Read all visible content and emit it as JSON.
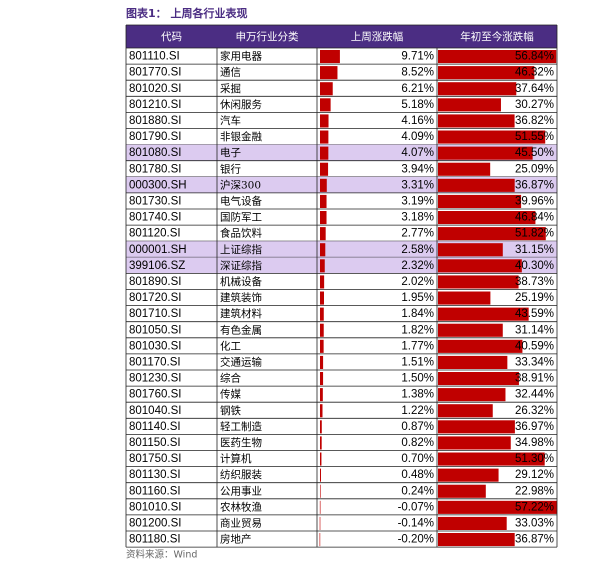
{
  "title": "图表1： 上周各行业表现",
  "source": "资料来源：Wind",
  "table": {
    "header": [
      "代码",
      "申万行业分类",
      "上周涨跌幅",
      "年初至今涨跌幅"
    ],
    "rows": [
      {
        "code": "801110.SI",
        "name": "家用电器",
        "week": {
          "value": 9.71,
          "label": "9.71%"
        },
        "ytd": {
          "value": 56.84,
          "label": "56.84%"
        }
      },
      {
        "code": "801770.SI",
        "name": "通信",
        "week": {
          "value": 8.52,
          "label": "8.52%"
        },
        "ytd": {
          "value": 46.32,
          "label": "46.32%"
        }
      },
      {
        "code": "801020.SI",
        "name": "采掘",
        "week": {
          "value": 6.21,
          "label": "6.21%"
        },
        "ytd": {
          "value": 37.64,
          "label": "37.64%"
        }
      },
      {
        "code": "801210.SI",
        "name": "休闲服务",
        "week": {
          "value": 5.18,
          "label": "5.18%"
        },
        "ytd": {
          "value": 30.27,
          "label": "30.27%"
        }
      },
      {
        "code": "801880.SI",
        "name": "汽车",
        "week": {
          "value": 4.16,
          "label": "4.16%"
        },
        "ytd": {
          "value": 36.82,
          "label": "36.82%"
        }
      },
      {
        "code": "801790.SI",
        "name": "非银金融",
        "week": {
          "value": 4.09,
          "label": "4.09%"
        },
        "ytd": {
          "value": 51.55,
          "label": "51.55%"
        }
      },
      {
        "code": "801080.SI",
        "name": "电子",
        "week": {
          "value": 4.07,
          "label": "4.07%"
        },
        "ytd": {
          "value": 45.5,
          "label": "45.50%"
        },
        "highlight": true
      },
      {
        "code": "801780.SI",
        "name": "银行",
        "week": {
          "value": 3.94,
          "label": "3.94%"
        },
        "ytd": {
          "value": 25.09,
          "label": "25.09%"
        }
      },
      {
        "code": "000300.SH",
        "name": "沪深300",
        "week": {
          "value": 3.31,
          "label": "3.31%"
        },
        "ytd": {
          "value": 36.87,
          "label": "36.87%"
        },
        "highlight": true
      },
      {
        "code": "801730.SI",
        "name": "电气设备",
        "week": {
          "value": 3.19,
          "label": "3.19%"
        },
        "ytd": {
          "value": 39.96,
          "label": "39.96%"
        }
      },
      {
        "code": "801740.SI",
        "name": "国防军工",
        "week": {
          "value": 3.18,
          "label": "3.18%"
        },
        "ytd": {
          "value": 46.84,
          "label": "46.84%"
        }
      },
      {
        "code": "801120.SI",
        "name": "食品饮料",
        "week": {
          "value": 2.77,
          "label": "2.77%"
        },
        "ytd": {
          "value": 51.82,
          "label": "51.82%"
        }
      },
      {
        "code": "000001.SH",
        "name": "上证综指",
        "week": {
          "value": 2.58,
          "label": "2.58%"
        },
        "ytd": {
          "value": 31.15,
          "label": "31.15%"
        },
        "highlight": true
      },
      {
        "code": "399106.SZ",
        "name": "深证综指",
        "week": {
          "value": 2.32,
          "label": "2.32%"
        },
        "ytd": {
          "value": 40.3,
          "label": "40.30%"
        },
        "highlight": true
      },
      {
        "code": "801890.SI",
        "name": "机械设备",
        "week": {
          "value": 2.02,
          "label": "2.02%"
        },
        "ytd": {
          "value": 38.73,
          "label": "38.73%"
        }
      },
      {
        "code": "801720.SI",
        "name": "建筑装饰",
        "week": {
          "value": 1.95,
          "label": "1.95%"
        },
        "ytd": {
          "value": 25.19,
          "label": "25.19%"
        }
      },
      {
        "code": "801710.SI",
        "name": "建筑材料",
        "week": {
          "value": 1.84,
          "label": "1.84%"
        },
        "ytd": {
          "value": 43.59,
          "label": "43.59%"
        }
      },
      {
        "code": "801050.SI",
        "name": "有色金属",
        "week": {
          "value": 1.82,
          "label": "1.82%"
        },
        "ytd": {
          "value": 31.14,
          "label": "31.14%"
        }
      },
      {
        "code": "801030.SI",
        "name": "化工",
        "week": {
          "value": 1.77,
          "label": "1.77%"
        },
        "ytd": {
          "value": 40.59,
          "label": "40.59%"
        }
      },
      {
        "code": "801170.SI",
        "name": "交通运输",
        "week": {
          "value": 1.51,
          "label": "1.51%"
        },
        "ytd": {
          "value": 33.34,
          "label": "33.34%"
        }
      },
      {
        "code": "801230.SI",
        "name": "综合",
        "week": {
          "value": 1.5,
          "label": "1.50%"
        },
        "ytd": {
          "value": 38.91,
          "label": "38.91%"
        }
      },
      {
        "code": "801760.SI",
        "name": "传媒",
        "week": {
          "value": 1.38,
          "label": "1.38%"
        },
        "ytd": {
          "value": 32.44,
          "label": "32.44%"
        }
      },
      {
        "code": "801040.SI",
        "name": "钢铁",
        "week": {
          "value": 1.22,
          "label": "1.22%"
        },
        "ytd": {
          "value": 26.32,
          "label": "26.32%"
        }
      },
      {
        "code": "801140.SI",
        "name": "轻工制造",
        "week": {
          "value": 0.87,
          "label": "0.87%"
        },
        "ytd": {
          "value": 36.97,
          "label": "36.97%"
        }
      },
      {
        "code": "801150.SI",
        "name": "医药生物",
        "week": {
          "value": 0.82,
          "label": "0.82%"
        },
        "ytd": {
          "value": 34.98,
          "label": "34.98%"
        }
      },
      {
        "code": "801750.SI",
        "name": "计算机",
        "week": {
          "value": 0.7,
          "label": "0.70%"
        },
        "ytd": {
          "value": 51.3,
          "label": "51.30%"
        }
      },
      {
        "code": "801130.SI",
        "name": "纺织服装",
        "week": {
          "value": 0.48,
          "label": "0.48%"
        },
        "ytd": {
          "value": 29.12,
          "label": "29.12%"
        }
      },
      {
        "code": "801160.SI",
        "name": "公用事业",
        "week": {
          "value": 0.24,
          "label": "0.24%"
        },
        "ytd": {
          "value": 22.98,
          "label": "22.98%"
        }
      },
      {
        "code": "801010.SI",
        "name": "农林牧渔",
        "week": {
          "value": -0.07,
          "label": "-0.07%"
        },
        "ytd": {
          "value": 57.22,
          "label": "57.22%"
        }
      },
      {
        "code": "801200.SI",
        "name": "商业贸易",
        "week": {
          "value": -0.14,
          "label": "-0.14%"
        },
        "ytd": {
          "value": 33.03,
          "label": "33.03%"
        }
      },
      {
        "code": "801180.SI",
        "name": "房地产",
        "week": {
          "value": -0.2,
          "label": "-0.20%"
        },
        "ytd": {
          "value": 36.87,
          "label": "36.87%"
        }
      }
    ]
  }
}
